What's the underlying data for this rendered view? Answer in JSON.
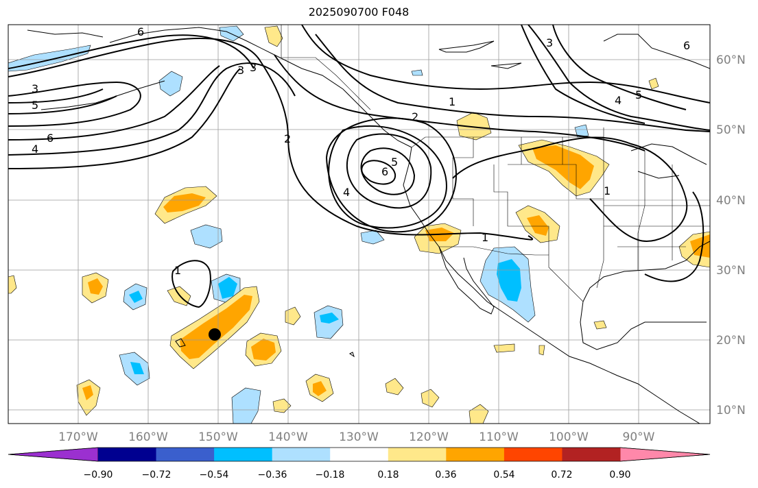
{
  "title": "2025090700 F048",
  "lon_ticks": [
    "170°W",
    "160°W",
    "150°W",
    "140°W",
    "130°W",
    "120°W",
    "110°W",
    "100°W",
    "90°W"
  ],
  "lat_ticks": [
    "60°N",
    "50°N",
    "40°N",
    "30°N",
    "20°N",
    "10°N"
  ],
  "colorbar": {
    "ticks": [
      "−0.90",
      "−0.72",
      "−0.54",
      "−0.36",
      "−0.18",
      "0.18",
      "0.36",
      "0.54",
      "0.72",
      "0.90"
    ],
    "colors": [
      "#9b30d0",
      "#000090",
      "#3a5fcd",
      "#00bfff",
      "#aee0ff",
      "#ffffff",
      "#ffe88a",
      "#ffa500",
      "#ff4500",
      "#b22222",
      "#ff88aa"
    ]
  },
  "contour_labels": [
    "6",
    "3",
    "5",
    "6",
    "4",
    "3",
    "3",
    "1",
    "2",
    "2",
    "5",
    "6",
    "4",
    "1",
    "3",
    "4",
    "5",
    "6",
    "1",
    "1"
  ],
  "marker": "black-dot-hawaii"
}
